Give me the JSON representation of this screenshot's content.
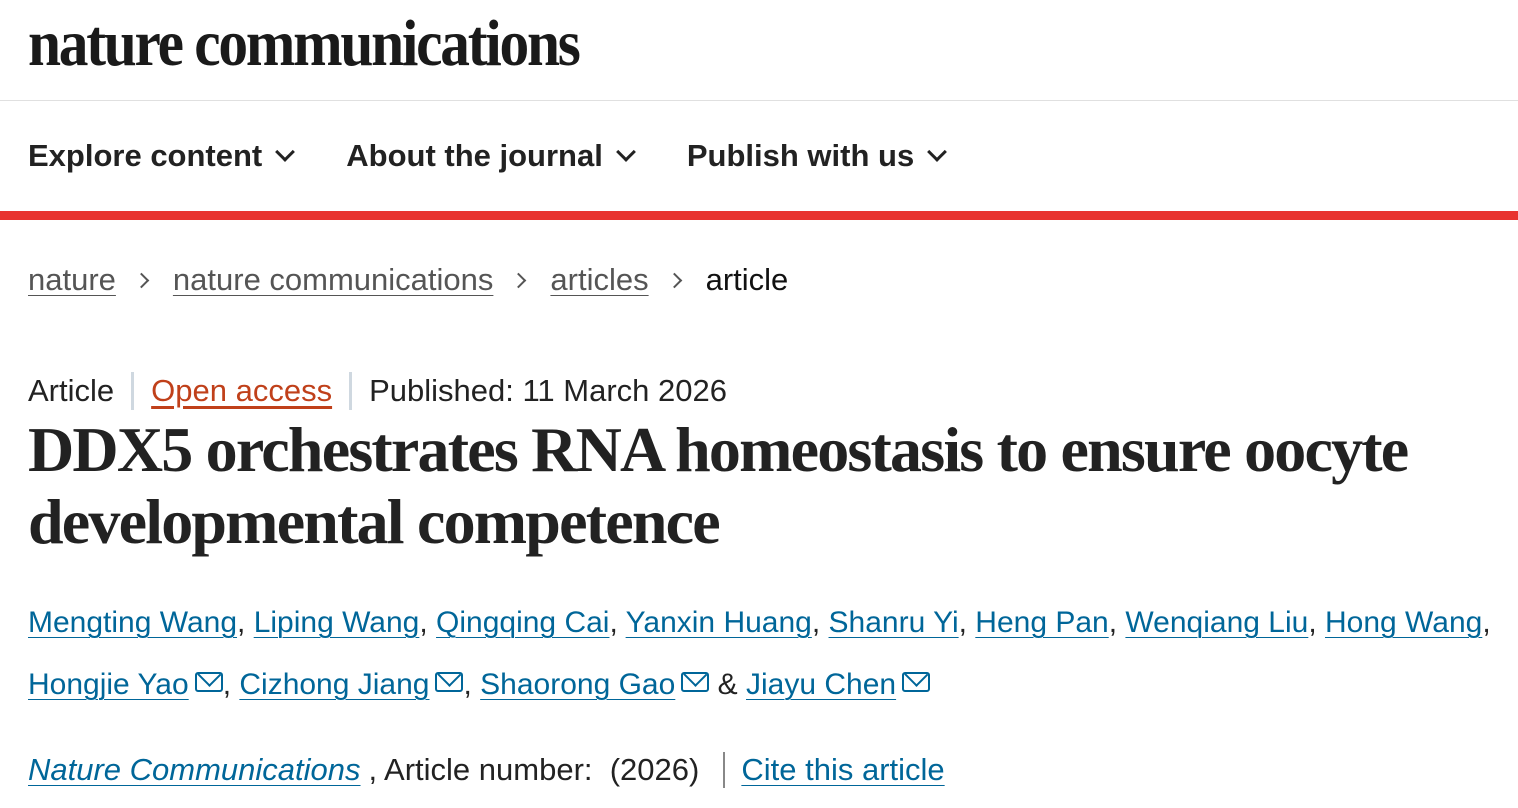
{
  "header": {
    "logo": "nature communications"
  },
  "nav": {
    "items": [
      {
        "label": "Explore content"
      },
      {
        "label": "About the journal"
      },
      {
        "label": "Publish with us"
      }
    ]
  },
  "breadcrumb": {
    "items": [
      "nature",
      "nature communications",
      "articles"
    ],
    "current": "article"
  },
  "meta": {
    "type": "Article",
    "access": "Open access",
    "published": "Published: 11 March 2026"
  },
  "title": "DDX5 orchestrates RNA homeostasis to ensure oocyte developmental competence",
  "authors": [
    {
      "name": "Mengting Wang",
      "email": false
    },
    {
      "name": "Liping Wang",
      "email": false
    },
    {
      "name": "Qingqing Cai",
      "email": false
    },
    {
      "name": "Yanxin Huang",
      "email": false
    },
    {
      "name": "Shanru Yi",
      "email": false
    },
    {
      "name": "Heng Pan",
      "email": false
    },
    {
      "name": "Wenqiang Liu",
      "email": false
    },
    {
      "name": "Hong Wang",
      "email": false
    },
    {
      "name": "Hongjie Yao",
      "email": true
    },
    {
      "name": "Cizhong Jiang",
      "email": true
    },
    {
      "name": "Shaorong Gao",
      "email": true
    },
    {
      "name": "Jiayu Chen",
      "email": true
    }
  ],
  "citation": {
    "journal": "Nature Communications",
    "article_number": ", Article number:  (2026)",
    "cite_link": "Cite this article"
  },
  "colors": {
    "accent_red": "#e8332f",
    "link_blue": "#006699",
    "open_access": "#c0401a"
  }
}
